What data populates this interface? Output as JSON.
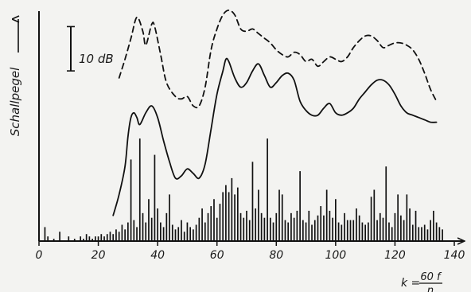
{
  "chart_data": {
    "type": "line",
    "ylabel": "Schallpegel",
    "xlabel": {
      "prefix": "k =",
      "numerator": "60 f",
      "denominator": "n"
    },
    "scale_bar_label": "10 dB",
    "xlim": [
      0,
      140
    ],
    "ylim": [
      0,
      100
    ],
    "x_ticks": [
      "0",
      "20",
      "40",
      "60",
      "80",
      "100",
      "120",
      "140"
    ],
    "x_tick_values": [
      0,
      20,
      40,
      60,
      80,
      100,
      120,
      140
    ],
    "scale_bar_span": [
      73,
      92
    ],
    "series": [
      {
        "style": "dashed",
        "points": [
          [
            27,
            70
          ],
          [
            29,
            78
          ],
          [
            31,
            87
          ],
          [
            33,
            96
          ],
          [
            35,
            90
          ],
          [
            36,
            84
          ],
          [
            38,
            93
          ],
          [
            39,
            92
          ],
          [
            41,
            80
          ],
          [
            43,
            68
          ],
          [
            46,
            62
          ],
          [
            48,
            61
          ],
          [
            50,
            62
          ],
          [
            52,
            58
          ],
          [
            54,
            58
          ],
          [
            56,
            66
          ],
          [
            58,
            82
          ],
          [
            60,
            91
          ],
          [
            62,
            97
          ],
          [
            64,
            99
          ],
          [
            66,
            97
          ],
          [
            68,
            91
          ],
          [
            70,
            90
          ],
          [
            72,
            91
          ],
          [
            74,
            89
          ],
          [
            76,
            87
          ],
          [
            78,
            85
          ],
          [
            80,
            82
          ],
          [
            82,
            80
          ],
          [
            84,
            79
          ],
          [
            86,
            81
          ],
          [
            88,
            80
          ],
          [
            90,
            77
          ],
          [
            92,
            78
          ],
          [
            94,
            75
          ],
          [
            96,
            77
          ],
          [
            98,
            79
          ],
          [
            100,
            78
          ],
          [
            102,
            77
          ],
          [
            104,
            79
          ],
          [
            106,
            83
          ],
          [
            108,
            86
          ],
          [
            110,
            88
          ],
          [
            112,
            88
          ],
          [
            114,
            86
          ],
          [
            116,
            83
          ],
          [
            118,
            84
          ],
          [
            120,
            85
          ],
          [
            122,
            85
          ],
          [
            124,
            84
          ],
          [
            126,
            82
          ],
          [
            128,
            78
          ],
          [
            130,
            72
          ],
          [
            132,
            65
          ],
          [
            134,
            60
          ]
        ]
      },
      {
        "style": "solid",
        "points": [
          [
            25,
            11
          ],
          [
            27,
            20
          ],
          [
            29,
            32
          ],
          [
            30,
            45
          ],
          [
            31,
            53
          ],
          [
            32,
            55
          ],
          [
            33,
            53
          ],
          [
            34,
            50
          ],
          [
            36,
            55
          ],
          [
            38,
            58
          ],
          [
            40,
            53
          ],
          [
            42,
            43
          ],
          [
            44,
            34
          ],
          [
            46,
            27
          ],
          [
            48,
            28
          ],
          [
            50,
            31
          ],
          [
            52,
            29
          ],
          [
            54,
            27
          ],
          [
            56,
            33
          ],
          [
            58,
            48
          ],
          [
            60,
            63
          ],
          [
            62,
            73
          ],
          [
            63,
            78
          ],
          [
            64,
            77
          ],
          [
            66,
            70
          ],
          [
            68,
            66
          ],
          [
            70,
            68
          ],
          [
            72,
            73
          ],
          [
            74,
            76
          ],
          [
            76,
            71
          ],
          [
            78,
            66
          ],
          [
            80,
            68
          ],
          [
            82,
            71
          ],
          [
            84,
            72
          ],
          [
            86,
            69
          ],
          [
            88,
            60
          ],
          [
            90,
            56
          ],
          [
            92,
            54
          ],
          [
            94,
            54
          ],
          [
            96,
            57
          ],
          [
            98,
            59
          ],
          [
            100,
            55
          ],
          [
            102,
            54
          ],
          [
            104,
            55
          ],
          [
            106,
            57
          ],
          [
            108,
            61
          ],
          [
            110,
            64
          ],
          [
            112,
            67
          ],
          [
            114,
            69
          ],
          [
            116,
            69
          ],
          [
            118,
            67
          ],
          [
            120,
            63
          ],
          [
            122,
            58
          ],
          [
            124,
            55
          ],
          [
            126,
            54
          ],
          [
            128,
            53
          ],
          [
            130,
            52
          ],
          [
            132,
            51
          ],
          [
            134,
            51
          ]
        ]
      }
    ],
    "lines": [
      [
        2,
        6
      ],
      [
        3,
        2
      ],
      [
        5,
        1
      ],
      [
        7,
        4
      ],
      [
        10,
        2
      ],
      [
        12,
        1
      ],
      [
        14,
        2
      ],
      [
        15,
        1
      ],
      [
        16,
        3
      ],
      [
        17,
        2
      ],
      [
        18,
        1
      ],
      [
        19,
        2
      ],
      [
        20,
        2
      ],
      [
        21,
        3
      ],
      [
        22,
        2
      ],
      [
        23,
        3
      ],
      [
        24,
        4
      ],
      [
        25,
        3
      ],
      [
        26,
        5
      ],
      [
        27,
        4
      ],
      [
        28,
        7
      ],
      [
        29,
        5
      ],
      [
        30,
        8
      ],
      [
        31,
        35
      ],
      [
        32,
        9
      ],
      [
        33,
        6
      ],
      [
        34,
        44
      ],
      [
        35,
        12
      ],
      [
        36,
        8
      ],
      [
        37,
        18
      ],
      [
        38,
        10
      ],
      [
        39,
        37
      ],
      [
        40,
        14
      ],
      [
        41,
        8
      ],
      [
        42,
        6
      ],
      [
        43,
        12
      ],
      [
        44,
        20
      ],
      [
        45,
        7
      ],
      [
        46,
        5
      ],
      [
        47,
        6
      ],
      [
        48,
        9
      ],
      [
        49,
        4
      ],
      [
        50,
        8
      ],
      [
        51,
        6
      ],
      [
        52,
        5
      ],
      [
        53,
        7
      ],
      [
        54,
        10
      ],
      [
        55,
        14
      ],
      [
        56,
        8
      ],
      [
        57,
        12
      ],
      [
        58,
        15
      ],
      [
        59,
        18
      ],
      [
        60,
        10
      ],
      [
        61,
        16
      ],
      [
        62,
        21
      ],
      [
        63,
        24
      ],
      [
        64,
        21
      ],
      [
        65,
        27
      ],
      [
        66,
        20
      ],
      [
        67,
        23
      ],
      [
        68,
        12
      ],
      [
        69,
        10
      ],
      [
        70,
        13
      ],
      [
        71,
        9
      ],
      [
        72,
        34
      ],
      [
        73,
        14
      ],
      [
        74,
        22
      ],
      [
        75,
        12
      ],
      [
        76,
        10
      ],
      [
        77,
        44
      ],
      [
        78,
        10
      ],
      [
        79,
        8
      ],
      [
        80,
        12
      ],
      [
        81,
        22
      ],
      [
        82,
        20
      ],
      [
        83,
        9
      ],
      [
        84,
        8
      ],
      [
        85,
        12
      ],
      [
        86,
        10
      ],
      [
        87,
        13
      ],
      [
        88,
        30
      ],
      [
        89,
        9
      ],
      [
        90,
        8
      ],
      [
        91,
        13
      ],
      [
        92,
        7
      ],
      [
        93,
        9
      ],
      [
        94,
        11
      ],
      [
        95,
        15
      ],
      [
        96,
        11
      ],
      [
        97,
        22
      ],
      [
        98,
        13
      ],
      [
        99,
        10
      ],
      [
        100,
        18
      ],
      [
        101,
        8
      ],
      [
        102,
        7
      ],
      [
        103,
        12
      ],
      [
        104,
        9
      ],
      [
        105,
        9
      ],
      [
        106,
        9
      ],
      [
        107,
        14
      ],
      [
        108,
        11
      ],
      [
        109,
        8
      ],
      [
        110,
        7
      ],
      [
        111,
        8
      ],
      [
        112,
        19
      ],
      [
        113,
        22
      ],
      [
        114,
        9
      ],
      [
        115,
        12
      ],
      [
        116,
        10
      ],
      [
        117,
        32
      ],
      [
        118,
        8
      ],
      [
        119,
        6
      ],
      [
        120,
        12
      ],
      [
        121,
        20
      ],
      [
        122,
        11
      ],
      [
        123,
        9
      ],
      [
        124,
        20
      ],
      [
        125,
        14
      ],
      [
        126,
        7
      ],
      [
        127,
        13
      ],
      [
        128,
        6
      ],
      [
        129,
        6
      ],
      [
        130,
        7
      ],
      [
        131,
        5
      ],
      [
        132,
        9
      ],
      [
        133,
        13
      ],
      [
        134,
        8
      ],
      [
        135,
        6
      ],
      [
        136,
        5
      ]
    ]
  }
}
